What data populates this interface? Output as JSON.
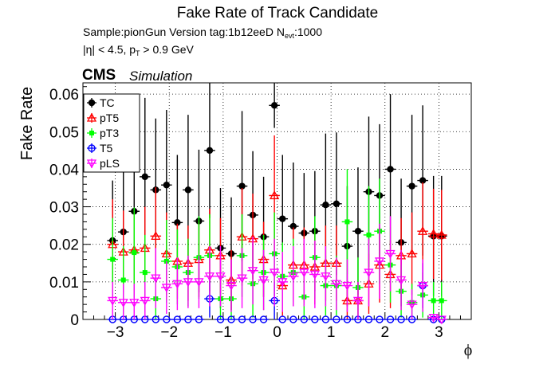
{
  "title": "Fake Rate of Track Candidate",
  "subtitle_line1": {
    "prefix": "Sample:pionGun   Version tag:1b12eeD  N",
    "sub": "evt",
    "suffix": ":1000"
  },
  "subtitle_line2": {
    "prefix": "|η| < 4.5, p",
    "sub": "T",
    "suffix": " > 0.9 GeV"
  },
  "cms_label": "CMS",
  "simulation_label": "Simulation",
  "chart_data": {
    "type": "scatter",
    "xlabel": "ϕ",
    "ylabel": "Fake Rate",
    "xlim": [
      -3.6,
      3.6
    ],
    "ylim": [
      0,
      0.063
    ],
    "x_ticks": [
      -3,
      -2,
      -1,
      0,
      1,
      2,
      3
    ],
    "x_tick_labels": [
      "−3",
      "−2",
      "−1",
      "0",
      "1",
      "2",
      "3"
    ],
    "y_ticks": [
      0,
      0.01,
      0.02,
      0.03,
      0.04,
      0.05,
      0.06
    ],
    "y_tick_labels": [
      "0",
      "0.01",
      "0.02",
      "0.03",
      "0.04",
      "0.05",
      "0.06"
    ],
    "grid": true,
    "legend_position": "top-left",
    "x": [
      -3.05,
      -2.85,
      -2.65,
      -2.45,
      -2.25,
      -2.05,
      -1.85,
      -1.65,
      -1.45,
      -1.25,
      -1.05,
      -0.85,
      -0.65,
      -0.45,
      -0.25,
      -0.05,
      0.1,
      0.3,
      0.5,
      0.7,
      0.9,
      1.1,
      1.3,
      1.5,
      1.7,
      1.9,
      2.1,
      2.3,
      2.5,
      2.7,
      2.9,
      3.05
    ],
    "series": [
      {
        "name": "TC",
        "color": "#000000",
        "marker": "filled-circle",
        "values": [
          0.021,
          0.0233,
          0.0288,
          0.038,
          0.0345,
          0.0358,
          0.0258,
          0.0345,
          0.0262,
          0.045,
          0.019,
          0.0175,
          0.0355,
          0.0278,
          0.022,
          0.057,
          0.0268,
          0.0248,
          0.023,
          0.0235,
          0.0305,
          0.0308,
          0.0195,
          0.0235,
          0.034,
          0.033,
          0.04,
          0.0205,
          0.0355,
          0.037,
          0.0222,
          0.0222
        ],
        "errors": [
          0.016,
          0.016,
          0.017,
          0.021,
          0.019,
          0.02,
          0.018,
          0.02,
          0.019,
          0.018,
          0.016,
          0.015,
          0.02,
          0.017,
          0.016,
          0.006,
          0.017,
          0.017,
          0.016,
          0.016,
          0.019,
          0.019,
          0.016,
          0.017,
          0.02,
          0.019,
          0.02,
          0.017,
          0.019,
          0.02,
          0.016,
          0.016
        ]
      },
      {
        "name": "pT5",
        "color": "#ff0000",
        "marker": "open-triangle",
        "values": [
          0.02,
          0.018,
          0.0185,
          0.019,
          0.0222,
          0.0175,
          0.0155,
          0.015,
          0.016,
          0.0185,
          0.017,
          0.0105,
          0.022,
          0.0215,
          0.016,
          0.033,
          0.009,
          0.0145,
          0.0145,
          0.014,
          0.015,
          0.015,
          0.005,
          0.005,
          0.0095,
          0.0145,
          0.012,
          0.017,
          0.0175,
          0.0235,
          0.0228,
          0.0225
        ],
        "errors": [
          0.012,
          0.011,
          0.011,
          0.011,
          0.013,
          0.011,
          0.01,
          0.01,
          0.01,
          0.011,
          0.01,
          0.008,
          0.013,
          0.012,
          0.01,
          0.016,
          0.008,
          0.01,
          0.01,
          0.01,
          0.01,
          0.01,
          0.005,
          0.005,
          0.008,
          0.01,
          0.009,
          0.01,
          0.011,
          0.013,
          0.012,
          0.012
        ]
      },
      {
        "name": "pT3",
        "color": "#00ff00",
        "marker": "filled-square",
        "values": [
          0.016,
          0.0105,
          0.0178,
          0.0125,
          0.0055,
          0.0155,
          0.014,
          0.0125,
          0.0165,
          0.017,
          0.0055,
          0.0055,
          0.017,
          0.0095,
          0.0125,
          0.0175,
          0.0115,
          0.0125,
          0.006,
          0.0165,
          0.009,
          0.009,
          0.026,
          0.0085,
          0.0225,
          0.0235,
          0.0145,
          0.0075,
          0.0045,
          0.0065,
          0.005,
          0.005
        ],
        "errors": [
          0.011,
          0.009,
          0.012,
          0.01,
          0.006,
          0.011,
          0.01,
          0.009,
          0.011,
          0.011,
          0.006,
          0.006,
          0.011,
          0.009,
          0.01,
          0.011,
          0.009,
          0.009,
          0.006,
          0.011,
          0.008,
          0.008,
          0.014,
          0.008,
          0.013,
          0.014,
          0.01,
          0.007,
          0.005,
          0.006,
          0.005,
          0.005
        ]
      },
      {
        "name": "T5",
        "color": "#0000ff",
        "marker": "open-circle",
        "values": [
          0,
          0,
          0,
          0,
          0,
          0,
          0,
          0,
          0,
          0.0055,
          0,
          0,
          0,
          0,
          0,
          0.005,
          0,
          0,
          0,
          0,
          0,
          0,
          0,
          0,
          0,
          0,
          0,
          0,
          0,
          0.009,
          0,
          0
        ],
        "errors": [
          0,
          0,
          0,
          0,
          0,
          0,
          0,
          0,
          0,
          0.005,
          0,
          0,
          0,
          0,
          0,
          0.005,
          0,
          0,
          0,
          0,
          0,
          0,
          0,
          0,
          0,
          0,
          0,
          0,
          0,
          0.006,
          0,
          0
        ]
      },
      {
        "name": "pLS",
        "color": "#ff00ff",
        "marker": "open-triangle-down",
        "values": [
          0.005,
          0.0045,
          0.0045,
          0.005,
          0.011,
          0.0085,
          0.0095,
          0.01,
          0.01,
          0.0115,
          0.0115,
          0.009,
          0.011,
          0.013,
          0.0105,
          0.0125,
          0.01,
          0.0115,
          0.0125,
          0.012,
          0.0115,
          0.0095,
          0.009,
          0.005,
          0.0125,
          0.0155,
          0.0175,
          0.0105,
          0.004,
          0.009,
          0.0005,
          0
        ],
        "errors": [
          0.005,
          0.005,
          0.005,
          0.005,
          0.008,
          0.007,
          0.007,
          0.007,
          0.007,
          0.008,
          0.008,
          0.007,
          0.008,
          0.009,
          0.008,
          0.009,
          0.008,
          0.008,
          0.009,
          0.009,
          0.008,
          0.007,
          0.007,
          0.005,
          0.009,
          0.01,
          0.01,
          0.008,
          0.004,
          0.007,
          0.001,
          0
        ]
      }
    ]
  }
}
